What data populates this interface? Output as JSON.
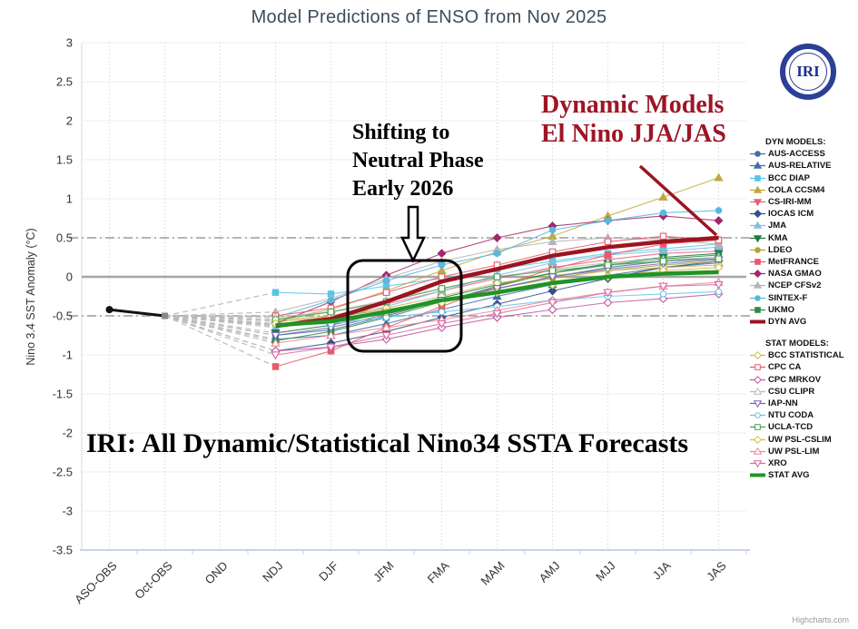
{
  "title": "Model Predictions of ENSO from Nov 2025",
  "logo_text": "IRI",
  "watermark": "Highcharts.com",
  "annotations": {
    "shifting_line1": "Shifting to",
    "shifting_line2": "Neutral Phase",
    "shifting_line3": "Early 2026",
    "dynamic_line1": "Dynamic Models",
    "dynamic_line2": "El Nino JJA/JAS",
    "bottom_caption": "IRI: All Dynamic/Statistical Nino34 SSTA Forecasts"
  },
  "legend": {
    "dyn_header": "DYN MODELS:",
    "stat_header": "STAT MODELS:"
  },
  "chart_data": {
    "type": "line",
    "title": "Model Predictions of ENSO from Nov 2025",
    "xlabel": "",
    "ylabel": "Nino 3.4 SST Anomaly (°C)",
    "categories": [
      "ASO-OBS",
      "Oct-OBS",
      "OND",
      "NDJ",
      "DJF",
      "JFM",
      "FMA",
      "MAM",
      "AMJ",
      "MJJ",
      "JJA",
      "JAS"
    ],
    "ylim": [
      -3.5,
      3
    ],
    "ytick_step": 0.5,
    "grid": true,
    "legend_position": "right",
    "el_nino_threshold": 0.5,
    "la_nina_threshold": -0.5,
    "observed": {
      "name": "Observed",
      "color": "#111111",
      "categories": [
        "ASO-OBS",
        "Oct-OBS"
      ],
      "values": [
        -0.42,
        -0.5
      ]
    },
    "forecast_start_category": "NDJ",
    "fan_origin": {
      "category": "Oct-OBS",
      "value": -0.5
    },
    "series": [
      {
        "name": "AUS-ACCESS",
        "group": "dyn",
        "color": "#3f6fae",
        "marker": "circle",
        "filled": true,
        "values": [
          -0.75,
          -0.68,
          -0.5,
          -0.3,
          -0.15,
          0.0,
          0.12,
          0.2,
          0.25
        ]
      },
      {
        "name": "AUS-RELATIVE",
        "group": "dyn",
        "color": "#3f6fae",
        "marker": "triangle",
        "filled": true,
        "values": [
          -0.8,
          -0.75,
          -0.6,
          -0.42,
          -0.25,
          -0.1,
          0.02,
          0.12,
          0.18
        ]
      },
      {
        "name": "BCC DIAP",
        "group": "dyn",
        "color": "#58c4ea",
        "marker": "square",
        "filled": true,
        "values": [
          -0.2,
          -0.22,
          -0.12,
          -0.02,
          0.1,
          0.2,
          0.3,
          0.36,
          0.42
        ]
      },
      {
        "name": "COLA CCSM4",
        "group": "dyn",
        "color": "#bfa93e",
        "marker": "triangle",
        "filled": true,
        "values": [
          -0.55,
          -0.42,
          -0.18,
          0.08,
          0.32,
          0.52,
          0.78,
          1.02,
          1.27
        ]
      },
      {
        "name": "CS-IRI-MM",
        "group": "dyn",
        "color": "#e8607a",
        "marker": "triangle-down",
        "filled": true,
        "values": [
          -0.62,
          -0.5,
          -0.35,
          -0.18,
          -0.02,
          0.12,
          0.22,
          0.3,
          0.33
        ]
      },
      {
        "name": "IOCAS ICM",
        "group": "dyn",
        "color": "#31508d",
        "marker": "diamond",
        "filled": true,
        "values": [
          -0.95,
          -0.85,
          -0.7,
          -0.52,
          -0.35,
          -0.18,
          -0.02,
          0.12,
          0.2
        ]
      },
      {
        "name": "JMA",
        "group": "dyn",
        "color": "#7fbede",
        "marker": "triangle",
        "filled": true,
        "values": [
          -0.65,
          -0.55,
          -0.38,
          -0.18,
          0.02,
          0.18,
          0.28,
          0.33,
          0.38
        ]
      },
      {
        "name": "KMA",
        "group": "dyn",
        "color": "#1d7a3c",
        "marker": "triangle-down",
        "filled": true,
        "values": [
          -0.72,
          -0.62,
          -0.45,
          -0.27,
          -0.1,
          0.05,
          0.17,
          0.25,
          0.3
        ]
      },
      {
        "name": "LDEO",
        "group": "dyn",
        "color": "#b3a23c",
        "marker": "circle",
        "filled": true,
        "values": [
          -0.57,
          -0.52,
          -0.42,
          -0.3,
          -0.15,
          -0.02,
          0.08,
          0.15,
          0.2
        ]
      },
      {
        "name": "MetFRANCE",
        "group": "dyn",
        "color": "#e85a6a",
        "marker": "square",
        "filled": true,
        "values": [
          -1.15,
          -0.95,
          -0.65,
          -0.38,
          -0.12,
          0.1,
          0.28,
          0.42,
          0.47
        ]
      },
      {
        "name": "NASA GMAO",
        "group": "dyn",
        "color": "#a2276e",
        "marker": "diamond",
        "filled": true,
        "values": [
          -0.6,
          -0.32,
          0.02,
          0.3,
          0.5,
          0.65,
          0.72,
          0.78,
          0.72
        ]
      },
      {
        "name": "NCEP CFSv2",
        "group": "dyn",
        "color": "#b5b5b5",
        "marker": "triangle",
        "filled": true,
        "values": [
          -0.45,
          -0.28,
          -0.02,
          0.2,
          0.35,
          0.45,
          0.5,
          0.47,
          0.42
        ]
      },
      {
        "name": "SINTEX-F",
        "group": "dyn",
        "color": "#55b9e3",
        "marker": "circle",
        "filled": true,
        "values": [
          -0.52,
          -0.3,
          -0.05,
          0.15,
          0.3,
          0.6,
          0.72,
          0.82,
          0.85
        ]
      },
      {
        "name": "UKMO",
        "group": "dyn",
        "color": "#2e8b45",
        "marker": "square",
        "filled": true,
        "values": [
          -0.82,
          -0.7,
          -0.52,
          -0.32,
          -0.12,
          0.05,
          0.15,
          0.23,
          0.28
        ]
      },
      {
        "name": "DYN AVG",
        "group": "dyn-avg",
        "color": "#9b141f",
        "marker": "none",
        "filled": true,
        "width": 4.5,
        "values": [
          -0.63,
          -0.54,
          -0.32,
          -0.06,
          0.1,
          0.27,
          0.38,
          0.45,
          0.5
        ]
      },
      {
        "name": "BCC STATISTICAL",
        "group": "stat",
        "color": "#c9b954",
        "marker": "diamond",
        "filled": false,
        "values": [
          -0.55,
          -0.5,
          -0.4,
          -0.25,
          -0.08,
          0.02,
          0.08,
          0.12,
          0.15
        ]
      },
      {
        "name": "CPC CA",
        "group": "stat",
        "color": "#e8596a",
        "marker": "square",
        "filled": false,
        "values": [
          -0.5,
          -0.4,
          -0.2,
          0.0,
          0.15,
          0.32,
          0.45,
          0.52,
          0.47
        ]
      },
      {
        "name": "CPC MRKOV",
        "group": "stat",
        "color": "#bf57a0",
        "marker": "diamond",
        "filled": false,
        "values": [
          -0.95,
          -0.9,
          -0.8,
          -0.65,
          -0.52,
          -0.42,
          -0.33,
          -0.28,
          -0.22
        ]
      },
      {
        "name": "CSU CLIPR",
        "group": "stat",
        "color": "#bcbcbc",
        "marker": "triangle",
        "filled": false,
        "values": [
          -0.52,
          -0.45,
          -0.3,
          -0.15,
          0.0,
          0.1,
          0.18,
          0.22,
          0.25
        ]
      },
      {
        "name": "IAP-NN",
        "group": "stat",
        "color": "#7a62b5",
        "marker": "triangle-down",
        "filled": false,
        "values": [
          -0.75,
          -0.65,
          -0.48,
          -0.3,
          -0.15,
          0.0,
          0.1,
          0.17,
          0.22
        ]
      },
      {
        "name": "NTU CODA",
        "group": "stat",
        "color": "#66c4e8",
        "marker": "circle",
        "filled": false,
        "values": [
          -0.62,
          -0.6,
          -0.52,
          -0.45,
          -0.38,
          -0.3,
          -0.25,
          -0.22,
          -0.19
        ]
      },
      {
        "name": "UCLA-TCD",
        "group": "stat",
        "color": "#46a04b",
        "marker": "square",
        "filled": false,
        "values": [
          -0.55,
          -0.45,
          -0.32,
          -0.15,
          0.0,
          0.08,
          0.15,
          0.2,
          0.23
        ]
      },
      {
        "name": "UW PSL-CSLIM",
        "group": "stat",
        "color": "#d2c03e",
        "marker": "diamond",
        "filled": false,
        "values": [
          -0.6,
          -0.55,
          -0.45,
          -0.33,
          -0.2,
          -0.1,
          0.0,
          0.08,
          0.12
        ]
      },
      {
        "name": "UW PSL-LIM",
        "group": "stat",
        "color": "#ef8898",
        "marker": "triangle",
        "filled": false,
        "values": [
          -0.85,
          -0.75,
          -0.65,
          -0.55,
          -0.43,
          -0.3,
          -0.2,
          -0.12,
          -0.07
        ]
      },
      {
        "name": "XRO",
        "group": "stat",
        "color": "#d668a0",
        "marker": "triangle-down",
        "filled": false,
        "values": [
          -1.0,
          -0.9,
          -0.75,
          -0.6,
          -0.47,
          -0.33,
          -0.2,
          -0.12,
          -0.1
        ]
      },
      {
        "name": "STAT AVG",
        "group": "stat-avg",
        "color": "#1f9424",
        "marker": "none",
        "filled": true,
        "width": 4.5,
        "values": [
          -0.62,
          -0.57,
          -0.45,
          -0.3,
          -0.2,
          -0.08,
          0.0,
          0.04,
          0.06
        ]
      }
    ]
  }
}
